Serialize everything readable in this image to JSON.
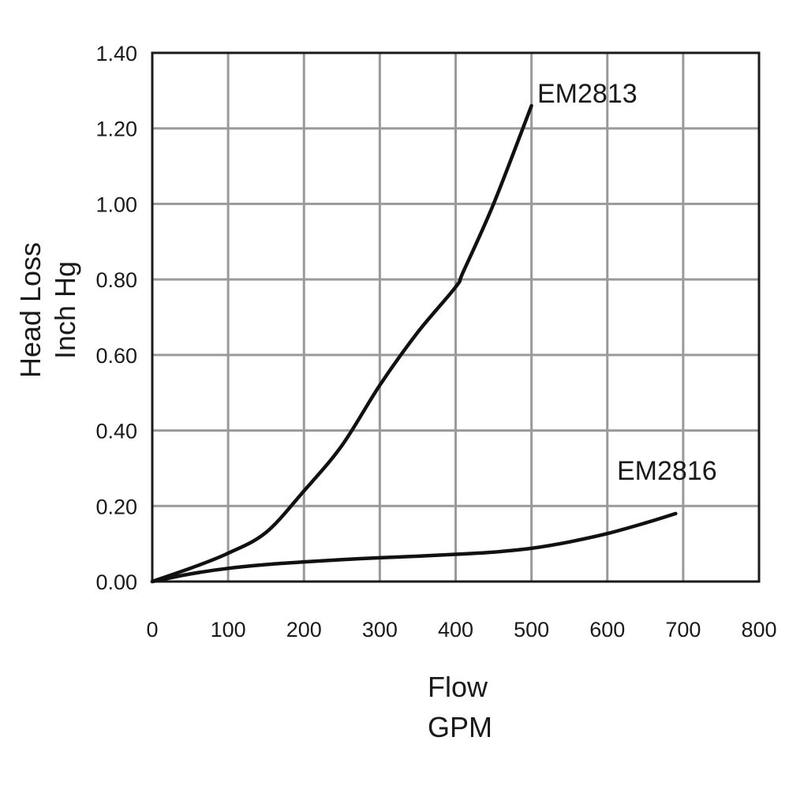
{
  "chart_data": {
    "type": "line",
    "xlabel": [
      "Flow",
      "GPM"
    ],
    "ylabel": [
      "Head Loss",
      "Inch Hg"
    ],
    "xlim": [
      0,
      800
    ],
    "ylim": [
      0,
      1.4
    ],
    "x_ticks": [
      "0",
      "100",
      "200",
      "300",
      "400",
      "500",
      "600",
      "700",
      "800"
    ],
    "y_ticks": [
      "0.00",
      "0.20",
      "0.40",
      "0.60",
      "0.80",
      "1.00",
      "1.20",
      "1.40"
    ],
    "grid": true,
    "series": [
      {
        "name": "EM2813",
        "x": [
          0,
          50,
          100,
          150,
          200,
          250,
          300,
          350,
          400,
          410,
          450,
          500
        ],
        "y": [
          0.0,
          0.035,
          0.075,
          0.13,
          0.24,
          0.36,
          0.52,
          0.66,
          0.78,
          0.82,
          1.0,
          1.26
        ]
      },
      {
        "name": "EM2816",
        "x": [
          0,
          50,
          100,
          150,
          200,
          250,
          300,
          350,
          400,
          450,
          500,
          550,
          600,
          650,
          690
        ],
        "y": [
          0.0,
          0.02,
          0.035,
          0.045,
          0.052,
          0.058,
          0.063,
          0.067,
          0.072,
          0.078,
          0.088,
          0.105,
          0.127,
          0.155,
          0.18
        ]
      }
    ]
  }
}
